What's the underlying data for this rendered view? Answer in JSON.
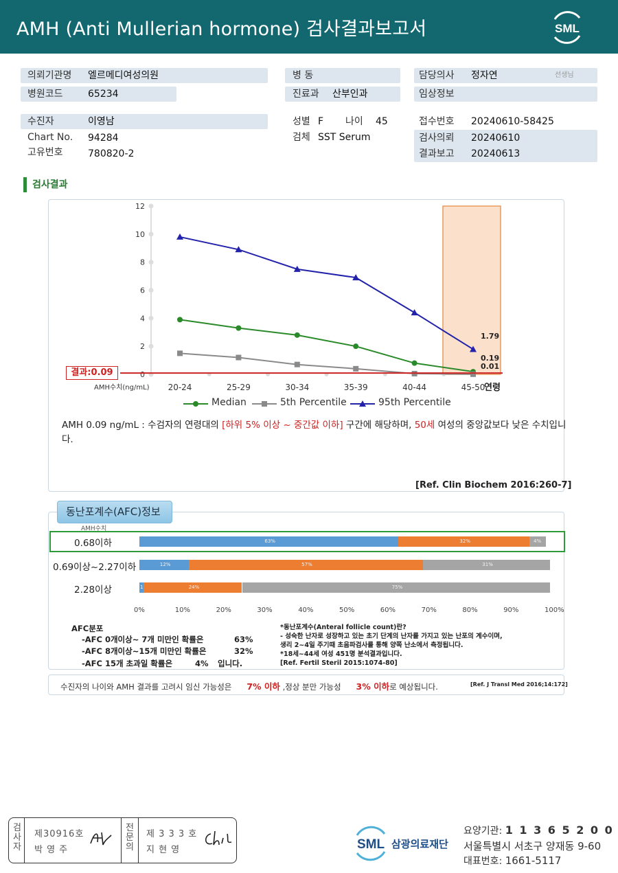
{
  "header": {
    "title": "AMH  (Anti  Mullerian  hormone) 검사결과보고서",
    "logo_text": "SML"
  },
  "info": {
    "inst_label": "의뢰기관명",
    "inst_value": "엘르메디여성의원",
    "code_label": "병원코드",
    "code_value": "65234",
    "ward_label": "병  동",
    "ward_value": "",
    "dept_label": "진료과",
    "dept_value": "산부인과",
    "doctor_label": "담당의사",
    "doctor_value": "정자연",
    "doctor_suffix": "선생님",
    "clinical_label": "임상정보",
    "clinical_value": "",
    "patient_label": "수진자",
    "patient_value": "이영남",
    "chart_label": "Chart No.",
    "chart_value": "94284",
    "id_label": "고유번호",
    "id_value": "780820-2",
    "sex_label": "성별",
    "sex_value": "F",
    "age_label": "나이",
    "age_value": "45",
    "specimen_label": "검체",
    "specimen_value": "SST Serum",
    "receipt_label": "접수번호",
    "receipt_value": "20240610-58425",
    "request_label": "검사의뢰",
    "request_value": "20240610",
    "report_label": "결과보고",
    "report_value": "20240613"
  },
  "section_title": "검사결과",
  "chart_data": {
    "type": "line",
    "categories": [
      "20-24",
      "25-29",
      "30-34",
      "35-39",
      "40-44",
      "45-50"
    ],
    "x_axis_suffix": "연령",
    "ylim": [
      0,
      12
    ],
    "yticks": [
      0,
      2,
      4,
      6,
      8,
      10,
      12
    ],
    "grid": false,
    "legend_position": "bottom",
    "highlight_category": "45-50",
    "series": [
      {
        "name": "Median",
        "color": "#2a8a2a",
        "marker": "circle",
        "values": [
          3.9,
          3.3,
          2.8,
          2.0,
          0.8,
          0.19
        ]
      },
      {
        "name": "5th Percentile",
        "color": "#8a8a8a",
        "marker": "square",
        "values": [
          1.5,
          1.2,
          0.7,
          0.4,
          0.05,
          0.01
        ]
      },
      {
        "name": "95th Percentile",
        "color": "#2222aa",
        "marker": "triangle",
        "values": [
          9.8,
          8.9,
          7.5,
          6.9,
          4.4,
          1.79
        ]
      }
    ],
    "annotations": [
      "1.79",
      "0.19",
      "0.01"
    ],
    "result_value": 0.09,
    "result_label": "결과:0.09",
    "ylabel": "AMH수치(ng/mL)"
  },
  "interpretation": {
    "part1": "AMH  0.09 ng/mL : 수검자의 연령대의 ",
    "range": "[하위 5% 이상 ~ 중간값 이하]",
    "part2": "  구간에 해당하며, ",
    "age": "50세",
    "part3": " 여성의 중앙값보다 낮은 수치입니다.",
    "reference": "[Ref. Clin Biochem 2016:260-7]"
  },
  "afc": {
    "title": "동난포계수(AFC)정보",
    "column_label": "AMH수치",
    "colors": {
      "low": "#5b9bd5",
      "mid": "#ed7d31",
      "high": "#a5a5a5",
      "highlight": "#2e9a3a"
    },
    "rows": [
      {
        "label": "0.68이하",
        "segments": [
          63,
          32,
          4
        ],
        "texts": [
          "63%",
          "32%",
          "4%"
        ]
      },
      {
        "label": "0.69이상~2.27이하",
        "segments": [
          12,
          57,
          31
        ],
        "texts": [
          "12%",
          "57%",
          "31%"
        ]
      },
      {
        "label": "2.28이상",
        "segments": [
          1,
          24,
          75
        ],
        "texts": [
          "1%",
          "24%",
          "75%"
        ]
      }
    ],
    "ticks": [
      "0%",
      "10%",
      "20%",
      "30%",
      "40%",
      "50%",
      "60%",
      "70%",
      "80%",
      "90%",
      "100%"
    ],
    "dist_title": "AFC분포",
    "dist_1": "-AFC  0개이상~ 7개 미만인 확률은",
    "dist_1_val": "63%",
    "dist_2": "-AFC  8개이상~15개 미만인 확률은",
    "dist_2_val": "32%",
    "dist_3": "-AFC  15개 초과일 확률은",
    "dist_3_val": "4%",
    "dist_3_tail": "입니다.",
    "note_1": "*동난포계수(Anteral  follicle  count)란?",
    "note_2": "- 성숙한 난자로 성장하고 있는 초기 단계의 난자를 가지고 있는 난포의 계수이며,",
    "note_3": "  생리 2~4일 주기때 초음파검사를 통해 양쪽 난소에서 측정됩니다.",
    "note_4": "*18세~44세 여성 451명 분석결과입니다.",
    "note_5": "[Ref. Fertil Steril 2015:1074-80]"
  },
  "pregnancy": {
    "part1": "수진자의  나이와 AMH  결과를 고려시 임신 가능성은",
    "val1": "7% 이하",
    "part2": ",정상 분만 가능성",
    "val2": "3% 이하",
    "part3": "로 예상됩니다.",
    "ref": "[Ref. J Transl Med 2016;14:172]"
  },
  "footer": {
    "inspector_label": "검사자",
    "inspector_no": "제30916호",
    "inspector_name": "박  영  주",
    "specialist_label": "전문의",
    "specialist_no": "제 3 3 3 호",
    "specialist_name": "지  현  영",
    "org_logo": "SML",
    "org_name": "삼광의료재단",
    "care_code_label": "요양기관: ",
    "care_code": "1 1 3 6 5 2 0 0",
    "address": "서울특별시 서초구 양재동 9-60",
    "tel_label": "대표번호: ",
    "tel": "1661-5117"
  }
}
